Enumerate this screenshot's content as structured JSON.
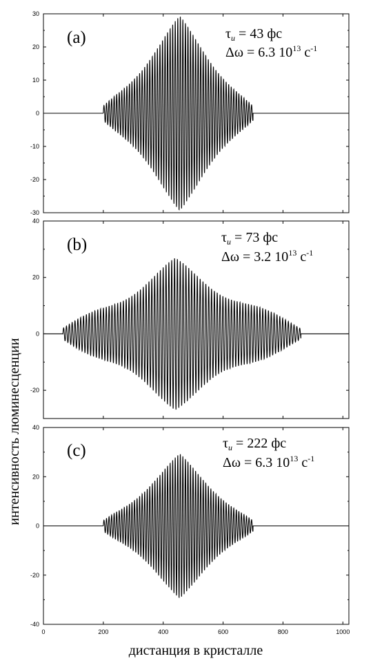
{
  "chart_data": [
    {
      "type": "line",
      "panel_label": "(a)",
      "annotation": {
        "tau_sym": "τ",
        "tau_sub": "u",
        "tau_rest": " = 43 фс",
        "dw_text": "Δω = 6.3 10",
        "dw_exp": "13",
        "dw_unit": " c",
        "dw_unit_exp": "-1"
      },
      "xlim": [
        0,
        1020
      ],
      "ylim": [
        -30,
        30
      ],
      "yticks": [
        "30",
        "20",
        "10",
        "0",
        "-10",
        "-20",
        "-30"
      ],
      "ytick_values": [
        30,
        20,
        10,
        0,
        -10,
        -20,
        -30
      ],
      "packet": {
        "start": 200,
        "end": 700,
        "center": 455,
        "peak": 27,
        "period": 8.5,
        "edge_amp": 2.5
      }
    },
    {
      "type": "line",
      "panel_label": "(b)",
      "annotation": {
        "tau_sym": "τ",
        "tau_sub": "u",
        "tau_rest": " = 73 фс",
        "dw_text": "Δω = 3.2 10",
        "dw_exp": "13",
        "dw_unit": " c",
        "dw_unit_exp": "-1"
      },
      "xlim": [
        0,
        1020
      ],
      "ylim": [
        -30,
        40
      ],
      "yticks": [
        "40",
        "20",
        "0",
        "-20"
      ],
      "ytick_values": [
        40,
        20,
        0,
        -20
      ],
      "packet": {
        "start": 65,
        "end": 860,
        "center": 440,
        "peak": 25,
        "period": 9.5,
        "edge_amp": 2
      }
    },
    {
      "type": "line",
      "panel_label": "(c)",
      "annotation": {
        "tau_sym": "τ",
        "tau_sub": "u",
        "tau_rest": " = 222 фс",
        "dw_text": "Δω = 6.3 10",
        "dw_exp": "13",
        "dw_unit": " c",
        "dw_unit_exp": "-1"
      },
      "xlim": [
        0,
        1020
      ],
      "ylim": [
        -40,
        40
      ],
      "yticks": [
        "40",
        "20",
        "0",
        "-20",
        "-40"
      ],
      "ytick_values": [
        40,
        20,
        0,
        -20,
        -40
      ],
      "xticks": [
        "0",
        "200",
        "400",
        "600",
        "800",
        "1000"
      ],
      "xtick_values": [
        0,
        200,
        400,
        600,
        800,
        1000
      ],
      "packet": {
        "start": 200,
        "end": 700,
        "center": 455,
        "peak": 27,
        "period": 8.5,
        "edge_amp": 2.5
      }
    }
  ],
  "xlabel": "дистанция в кристалле",
  "ylabel": "интенсивность люминесценции"
}
